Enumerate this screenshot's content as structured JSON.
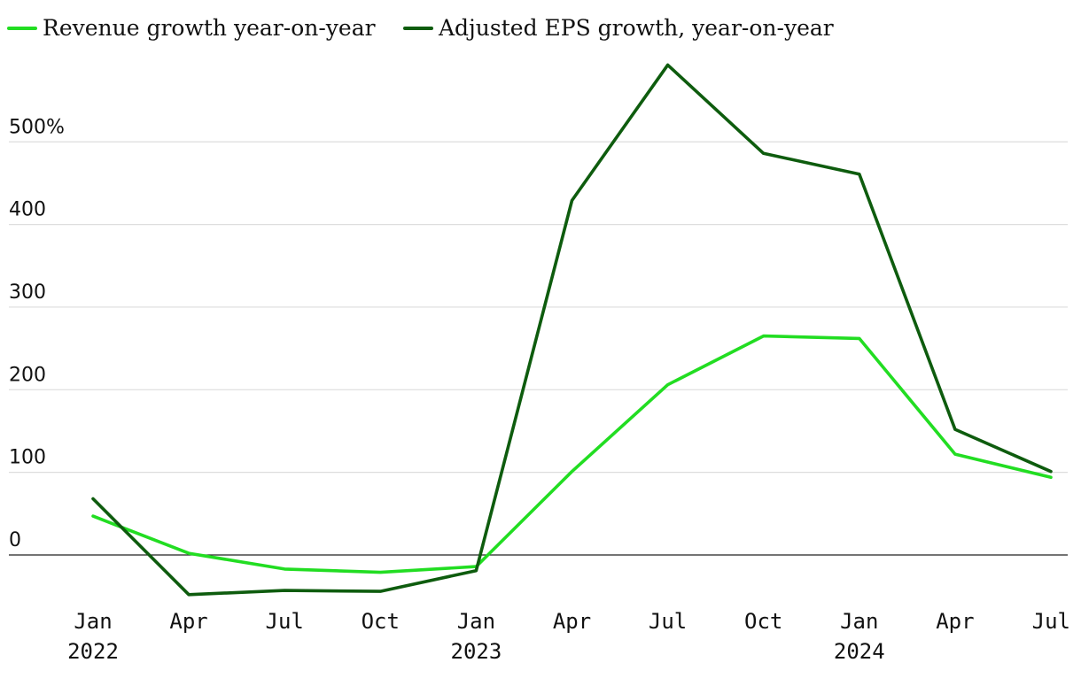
{
  "chart_data": {
    "type": "line",
    "title": "",
    "xlabel": "",
    "ylabel": "",
    "x": [
      "2022-01",
      "2022-04",
      "2022-07",
      "2022-10",
      "2023-01",
      "2023-04",
      "2023-07",
      "2023-10",
      "2024-01",
      "2024-04",
      "2024-07"
    ],
    "x_tick_labels": [
      {
        "month": "Jan",
        "year": "2022"
      },
      {
        "month": "Apr",
        "year": ""
      },
      {
        "month": "Jul",
        "year": ""
      },
      {
        "month": "Oct",
        "year": ""
      },
      {
        "month": "Jan",
        "year": "2023"
      },
      {
        "month": "Apr",
        "year": ""
      },
      {
        "month": "Jul",
        "year": ""
      },
      {
        "month": "Oct",
        "year": ""
      },
      {
        "month": "Jan",
        "year": "2024"
      },
      {
        "month": "Apr",
        "year": ""
      },
      {
        "month": "Jul",
        "year": ""
      }
    ],
    "y_ticks": [
      {
        "value": 0,
        "label": "0"
      },
      {
        "value": 100,
        "label": "100"
      },
      {
        "value": 200,
        "label": "200"
      },
      {
        "value": 300,
        "label": "300"
      },
      {
        "value": 400,
        "label": "400"
      },
      {
        "value": 500,
        "label": "500%"
      }
    ],
    "ylim": [
      -60,
      600
    ],
    "grid": true,
    "legend_position": "top-left",
    "series": [
      {
        "name": "Revenue growth year-on-year",
        "color": "#22dd22",
        "values": [
          47,
          2,
          -17,
          -21,
          -14,
          101,
          206,
          265,
          262,
          122,
          94
        ]
      },
      {
        "name": "Adjusted EPS growth, year-on-year",
        "color": "#0e5c0e",
        "values": [
          68,
          -48,
          -43,
          -44,
          -19,
          429,
          593,
          486,
          461,
          152,
          101
        ]
      }
    ]
  }
}
